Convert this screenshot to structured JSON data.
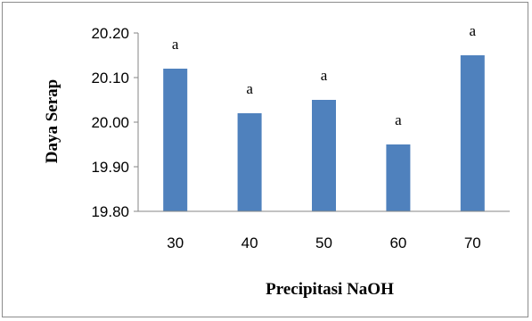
{
  "chart_data": {
    "type": "bar",
    "categories": [
      "30",
      "40",
      "50",
      "60",
      "70"
    ],
    "values": [
      20.12,
      20.02,
      20.05,
      19.95,
      20.15
    ],
    "data_labels": [
      "a",
      "a",
      "a",
      "a",
      "a"
    ],
    "xlabel": "Precipitasi NaOH",
    "ylabel": "Daya Serap",
    "ylim": [
      19.8,
      20.2
    ],
    "yticks": [
      19.8,
      19.9,
      20.0,
      20.1,
      20.2
    ],
    "ytick_labels": [
      "19.80",
      "19.90",
      "20.00",
      "20.10",
      "20.20"
    ],
    "grid": false,
    "legend": "none",
    "bar_color": "#4f81bd"
  }
}
